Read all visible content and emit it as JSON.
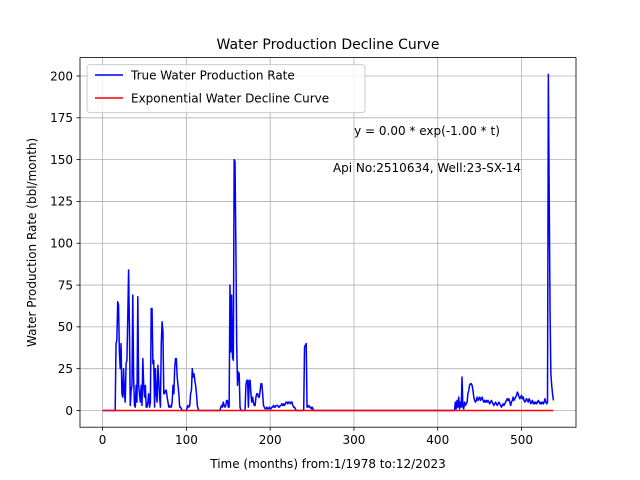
{
  "chart_data": {
    "type": "line",
    "title": "Water Production Decline Curve",
    "xlabel": "Time (months) from:1/1978 to:12/2023",
    "ylabel": "Water Production Rate (bbl/month)",
    "xlim": [
      -27,
      565
    ],
    "ylim": [
      -10,
      211
    ],
    "xticks": [
      0,
      100,
      200,
      300,
      400,
      500
    ],
    "yticks": [
      0,
      25,
      50,
      75,
      100,
      125,
      150,
      175,
      200
    ],
    "grid": true,
    "legend_position": "top-left",
    "annotations": [
      "y = 0.00 * exp(-1.00 * t)",
      "Api No:2510634, Well:23-SX-14"
    ],
    "series": [
      {
        "name": "True Water Production Rate",
        "color": "#0000ff",
        "points": [
          [
            0,
            0
          ],
          [
            14,
            0
          ],
          [
            15,
            0
          ],
          [
            16,
            40
          ],
          [
            17,
            42
          ],
          [
            18,
            65
          ],
          [
            19,
            63
          ],
          [
            20,
            35
          ],
          [
            21,
            25
          ],
          [
            22,
            40
          ],
          [
            23,
            10
          ],
          [
            24,
            8
          ],
          [
            25,
            25
          ],
          [
            26,
            10
          ],
          [
            27,
            5
          ],
          [
            28,
            28
          ],
          [
            29,
            30
          ],
          [
            30,
            55
          ],
          [
            31,
            84
          ],
          [
            32,
            50
          ],
          [
            33,
            3
          ],
          [
            34,
            12
          ],
          [
            35,
            15
          ],
          [
            36,
            69
          ],
          [
            37,
            20
          ],
          [
            38,
            3
          ],
          [
            39,
            2
          ],
          [
            40,
            15
          ],
          [
            41,
            5
          ],
          [
            42,
            68
          ],
          [
            43,
            15
          ],
          [
            44,
            10
          ],
          [
            45,
            5
          ],
          [
            46,
            15
          ],
          [
            47,
            3
          ],
          [
            48,
            31
          ],
          [
            49,
            15
          ],
          [
            50,
            8
          ],
          [
            51,
            15
          ],
          [
            52,
            2
          ],
          [
            53,
            2
          ],
          [
            54,
            5
          ],
          [
            55,
            10
          ],
          [
            56,
            2
          ],
          [
            57,
            5
          ],
          [
            58,
            61
          ],
          [
            59,
            61
          ],
          [
            60,
            28
          ],
          [
            61,
            30
          ],
          [
            62,
            2
          ],
          [
            63,
            25
          ],
          [
            64,
            10
          ],
          [
            65,
            5
          ],
          [
            66,
            27
          ],
          [
            67,
            18
          ],
          [
            68,
            8
          ],
          [
            69,
            2
          ],
          [
            70,
            40
          ],
          [
            71,
            53
          ],
          [
            72,
            47
          ],
          [
            73,
            10
          ],
          [
            74,
            10
          ],
          [
            75,
            12
          ],
          [
            76,
            12
          ],
          [
            77,
            8
          ],
          [
            78,
            5
          ],
          [
            79,
            2
          ],
          [
            80,
            3
          ],
          [
            81,
            2
          ],
          [
            82,
            2
          ],
          [
            83,
            5
          ],
          [
            84,
            15
          ],
          [
            85,
            10
          ],
          [
            86,
            25
          ],
          [
            87,
            31
          ],
          [
            88,
            31
          ],
          [
            89,
            20
          ],
          [
            90,
            15
          ],
          [
            91,
            10
          ],
          [
            92,
            2
          ],
          [
            93,
            2
          ],
          [
            94,
            1
          ],
          [
            95,
            0
          ],
          [
            96,
            0
          ],
          [
            100,
            0
          ],
          [
            101,
            2
          ],
          [
            102,
            3
          ],
          [
            103,
            2
          ],
          [
            104,
            3
          ],
          [
            105,
            10
          ],
          [
            106,
            12
          ],
          [
            107,
            25
          ],
          [
            108,
            20
          ],
          [
            109,
            22
          ],
          [
            110,
            18
          ],
          [
            111,
            15
          ],
          [
            112,
            10
          ],
          [
            113,
            3
          ],
          [
            114,
            1
          ],
          [
            115,
            0
          ],
          [
            140,
            0
          ],
          [
            141,
            2
          ],
          [
            142,
            3
          ],
          [
            143,
            2
          ],
          [
            144,
            5
          ],
          [
            145,
            3
          ],
          [
            146,
            2
          ],
          [
            147,
            3
          ],
          [
            148,
            6
          ],
          [
            149,
            6
          ],
          [
            150,
            2
          ],
          [
            151,
            2
          ],
          [
            152,
            75
          ],
          [
            153,
            35
          ],
          [
            154,
            69
          ],
          [
            155,
            32
          ],
          [
            156,
            30
          ],
          [
            157,
            150
          ],
          [
            158,
            149
          ],
          [
            159,
            100
          ],
          [
            160,
            40
          ],
          [
            161,
            15
          ],
          [
            162,
            23
          ],
          [
            163,
            22
          ],
          [
            164,
            2
          ],
          [
            165,
            0
          ],
          [
            170,
            0
          ],
          [
            171,
            15
          ],
          [
            172,
            18
          ],
          [
            173,
            18
          ],
          [
            174,
            2
          ],
          [
            175,
            18
          ],
          [
            176,
            18
          ],
          [
            177,
            10
          ],
          [
            178,
            5
          ],
          [
            179,
            8
          ],
          [
            180,
            5
          ],
          [
            181,
            3
          ],
          [
            182,
            3
          ],
          [
            183,
            8
          ],
          [
            184,
            10
          ],
          [
            185,
            10
          ],
          [
            186,
            8
          ],
          [
            187,
            8
          ],
          [
            188,
            12
          ],
          [
            189,
            16
          ],
          [
            190,
            16
          ],
          [
            191,
            10
          ],
          [
            192,
            3
          ],
          [
            193,
            2
          ],
          [
            194,
            1
          ],
          [
            195,
            1
          ],
          [
            196,
            2
          ],
          [
            197,
            1
          ],
          [
            198,
            1
          ],
          [
            199,
            2
          ],
          [
            200,
            1
          ],
          [
            201,
            1
          ],
          [
            202,
            2
          ],
          [
            203,
            2
          ],
          [
            204,
            3
          ],
          [
            205,
            2
          ],
          [
            206,
            2
          ],
          [
            207,
            3
          ],
          [
            208,
            3
          ],
          [
            209,
            3
          ],
          [
            210,
            2
          ],
          [
            211,
            2
          ],
          [
            212,
            3
          ],
          [
            213,
            3
          ],
          [
            214,
            4
          ],
          [
            215,
            3
          ],
          [
            216,
            4
          ],
          [
            217,
            3
          ],
          [
            218,
            4
          ],
          [
            219,
            5
          ],
          [
            220,
            5
          ],
          [
            221,
            4
          ],
          [
            222,
            5
          ],
          [
            223,
            5
          ],
          [
            224,
            4
          ],
          [
            225,
            5
          ],
          [
            226,
            5
          ],
          [
            227,
            3
          ],
          [
            228,
            2
          ],
          [
            229,
            2
          ],
          [
            230,
            1
          ],
          [
            231,
            0
          ],
          [
            240,
            0
          ],
          [
            241,
            38
          ],
          [
            242,
            39
          ],
          [
            243,
            40
          ],
          [
            244,
            2
          ],
          [
            245,
            2
          ],
          [
            246,
            3
          ],
          [
            247,
            2
          ],
          [
            248,
            2
          ],
          [
            249,
            1
          ],
          [
            250,
            2
          ],
          [
            251,
            1
          ],
          [
            252,
            0
          ],
          [
            420,
            0
          ],
          [
            421,
            5
          ],
          [
            422,
            1
          ],
          [
            423,
            6
          ],
          [
            424,
            2
          ],
          [
            425,
            8
          ],
          [
            426,
            1
          ],
          [
            427,
            5
          ],
          [
            428,
            2
          ],
          [
            429,
            20
          ],
          [
            430,
            2
          ],
          [
            431,
            1
          ],
          [
            432,
            5
          ],
          [
            433,
            3
          ],
          [
            434,
            4
          ],
          [
            435,
            5
          ],
          [
            436,
            10
          ],
          [
            437,
            12
          ],
          [
            438,
            15
          ],
          [
            439,
            16
          ],
          [
            440,
            16
          ],
          [
            441,
            15
          ],
          [
            442,
            12
          ],
          [
            443,
            8
          ],
          [
            444,
            6
          ],
          [
            445,
            5
          ],
          [
            446,
            6
          ],
          [
            447,
            8
          ],
          [
            448,
            6
          ],
          [
            449,
            7
          ],
          [
            450,
            8
          ],
          [
            451,
            6
          ],
          [
            452,
            7
          ],
          [
            453,
            8
          ],
          [
            454,
            6
          ],
          [
            455,
            5
          ],
          [
            456,
            6
          ],
          [
            457,
            5
          ],
          [
            458,
            6
          ],
          [
            459,
            5
          ],
          [
            460,
            6
          ],
          [
            461,
            5
          ],
          [
            462,
            4
          ],
          [
            463,
            5
          ],
          [
            464,
            6
          ],
          [
            465,
            5
          ],
          [
            466,
            4
          ],
          [
            467,
            3
          ],
          [
            468,
            4
          ],
          [
            469,
            5
          ],
          [
            470,
            4
          ],
          [
            471,
            3
          ],
          [
            472,
            4
          ],
          [
            473,
            5
          ],
          [
            474,
            4
          ],
          [
            475,
            3
          ],
          [
            476,
            2
          ],
          [
            477,
            3
          ],
          [
            478,
            4
          ],
          [
            479,
            3
          ],
          [
            480,
            4
          ],
          [
            481,
            5
          ],
          [
            482,
            6
          ],
          [
            483,
            7
          ],
          [
            484,
            6
          ],
          [
            485,
            7
          ],
          [
            486,
            5
          ],
          [
            487,
            3
          ],
          [
            488,
            5
          ],
          [
            489,
            6
          ],
          [
            490,
            8
          ],
          [
            491,
            6
          ],
          [
            492,
            7
          ],
          [
            493,
            8
          ],
          [
            494,
            9
          ],
          [
            495,
            11
          ],
          [
            496,
            10
          ],
          [
            497,
            8
          ],
          [
            498,
            7
          ],
          [
            499,
            8
          ],
          [
            500,
            9
          ],
          [
            501,
            7
          ],
          [
            502,
            8
          ],
          [
            503,
            6
          ],
          [
            504,
            5
          ],
          [
            505,
            6
          ],
          [
            506,
            7
          ],
          [
            507,
            6
          ],
          [
            508,
            5
          ],
          [
            509,
            7
          ],
          [
            510,
            6
          ],
          [
            511,
            4
          ],
          [
            512,
            5
          ],
          [
            513,
            6
          ],
          [
            514,
            4
          ],
          [
            515,
            5
          ],
          [
            516,
            4
          ],
          [
            517,
            5
          ],
          [
            518,
            4
          ],
          [
            519,
            5
          ],
          [
            520,
            6
          ],
          [
            521,
            5
          ],
          [
            522,
            4
          ],
          [
            523,
            5
          ],
          [
            524,
            4
          ],
          [
            525,
            5
          ],
          [
            526,
            4
          ],
          [
            527,
            5
          ],
          [
            528,
            7
          ],
          [
            529,
            5
          ],
          [
            530,
            4
          ],
          [
            531,
            5
          ],
          [
            532,
            201
          ],
          [
            533,
            130
          ],
          [
            534,
            60
          ],
          [
            535,
            22
          ],
          [
            536,
            15
          ],
          [
            537,
            10
          ],
          [
            538,
            6
          ]
        ]
      },
      {
        "name": "Exponential Water Decline Curve",
        "color": "#ff0000",
        "points": [
          [
            0,
            0
          ],
          [
            538,
            0
          ]
        ]
      }
    ]
  }
}
